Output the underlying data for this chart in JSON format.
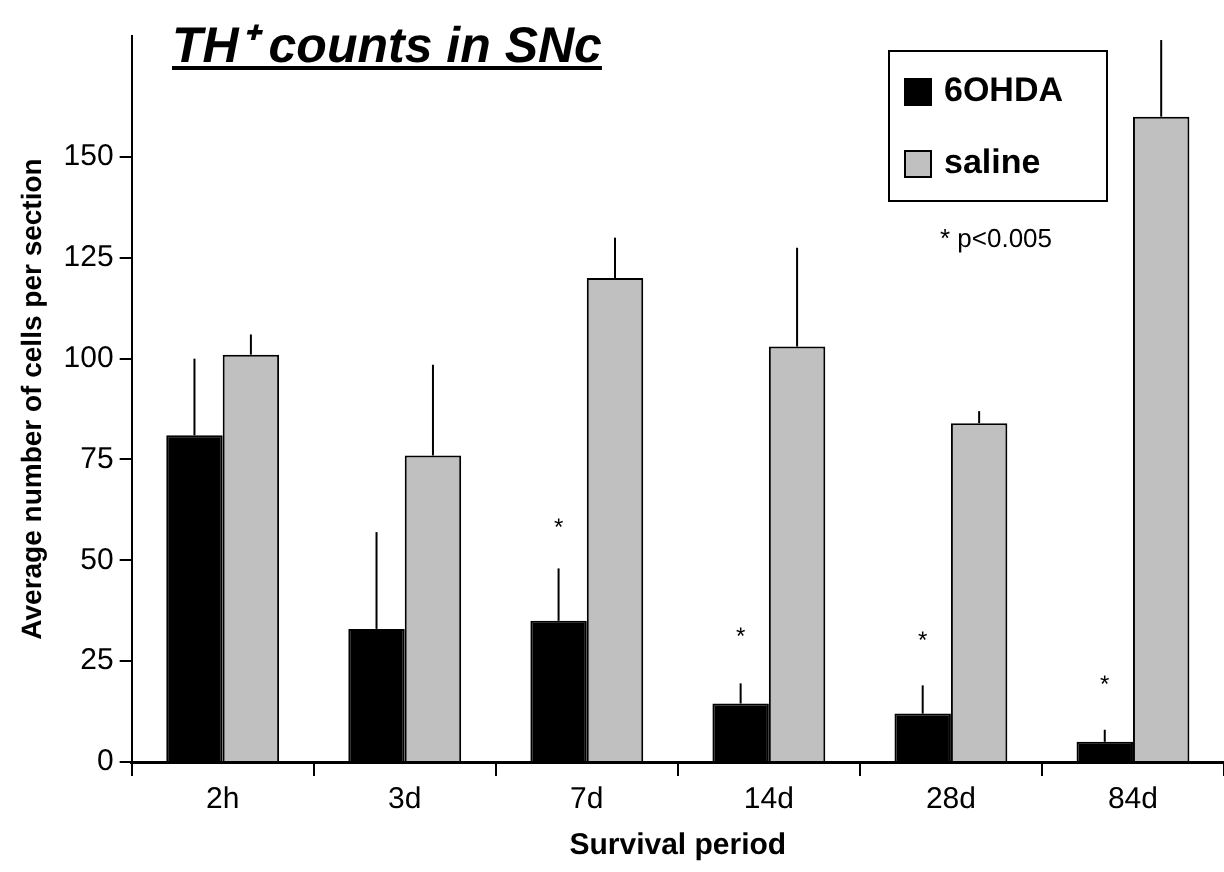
{
  "chart_data": {
    "type": "bar",
    "title": "TH⁺ counts in SNc",
    "xlabel": "Survival period",
    "ylabel": "Average number of cells per section",
    "categories": [
      "2h",
      "3d",
      "7d",
      "14d",
      "28d",
      "84d"
    ],
    "series": [
      {
        "name": "6OHDA",
        "color": "#000000",
        "values": [
          81,
          33,
          35,
          14.5,
          12,
          5
        ],
        "errors": [
          [
            81,
            100
          ],
          [
            33,
            57
          ],
          [
            35,
            48
          ],
          [
            14.5,
            19.5
          ],
          [
            12,
            19
          ],
          [
            5,
            8
          ]
        ]
      },
      {
        "name": "saline",
        "color": "#c0c0c0",
        "values": [
          101,
          76,
          120,
          103,
          84,
          160
        ],
        "errors": [
          [
            101,
            106
          ],
          [
            76,
            98.5
          ],
          [
            120,
            130
          ],
          [
            103,
            127.5
          ],
          [
            84,
            87
          ],
          [
            160,
            179
          ]
        ]
      }
    ],
    "ylim": [
      0,
      180
    ],
    "yticks": [
      0,
      25,
      50,
      75,
      100,
      125,
      150
    ],
    "grid": false,
    "legend": "top right",
    "annotations": [
      {
        "text": "*",
        "x": "7d",
        "y": 58
      },
      {
        "text": "*",
        "x": "14d",
        "y": 31
      },
      {
        "text": "*",
        "x": "28d",
        "y": 30
      },
      {
        "text": "*",
        "x": "84d",
        "y": 19
      },
      "* p<0.005"
    ]
  }
}
